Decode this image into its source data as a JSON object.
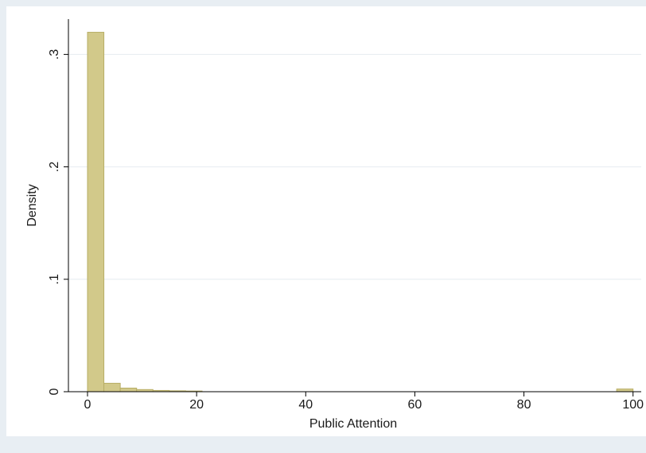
{
  "chart_data": {
    "type": "bar",
    "title": "",
    "xlabel": "Public Attention",
    "ylabel": "Density",
    "xlim": [
      -3.5,
      101.5
    ],
    "ylim": [
      0,
      0.33
    ],
    "xticks": [
      0,
      20,
      40,
      60,
      80,
      100
    ],
    "xtick_labels": [
      "0",
      "20",
      "40",
      "60",
      "80",
      "100"
    ],
    "yticks": [
      0,
      0.1,
      0.2,
      0.3
    ],
    "ytick_labels": [
      "0",
      ".1",
      ".2",
      ".3"
    ],
    "grid": true,
    "legend": "none",
    "bin_width": 3.0,
    "bins": [
      {
        "start": 0,
        "end": 3,
        "value": 0.3197
      },
      {
        "start": 3,
        "end": 6,
        "value": 0.0075
      },
      {
        "start": 6,
        "end": 9,
        "value": 0.0032
      },
      {
        "start": 9,
        "end": 12,
        "value": 0.0019
      },
      {
        "start": 12,
        "end": 15,
        "value": 0.0011
      },
      {
        "start": 15,
        "end": 18,
        "value": 0.0008
      },
      {
        "start": 18,
        "end": 21,
        "value": 0.0006
      },
      {
        "start": 97,
        "end": 100,
        "value": 0.0024
      }
    ],
    "colors": {
      "bar_fill": "#d2c98a",
      "bar_stroke": "#b8ae66",
      "plot_bg": "#ffffff",
      "outer_bg": "#e8eef3",
      "grid": "#e6ecf0",
      "axis": "#000000"
    }
  }
}
